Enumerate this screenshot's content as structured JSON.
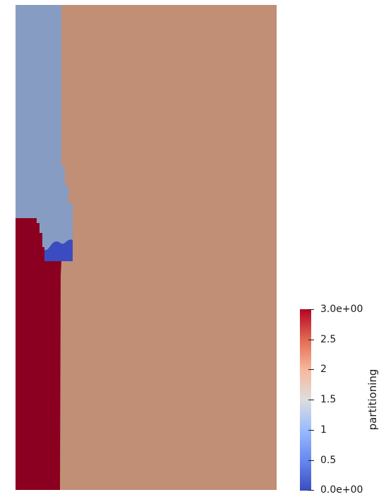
{
  "scalar_field": "partitioning",
  "partitions": [
    {
      "id": 0,
      "color": "#3a4cc0"
    },
    {
      "id": 1,
      "color": "#879cc2"
    },
    {
      "id": 2,
      "color": "#c08f76"
    },
    {
      "id": 3,
      "color": "#8b0020"
    }
  ],
  "colorbar": {
    "title": "partitioning",
    "min": 0,
    "max": 3,
    "ticks": [
      "3.0e+00",
      "2.5",
      "2",
      "1.5",
      "1",
      "0.5",
      "0.0e+00"
    ],
    "gradient": [
      "#3b4cc0",
      "#6788ee",
      "#9abbff",
      "#dddddd",
      "#f7b89c",
      "#e26952",
      "#b40426"
    ]
  }
}
